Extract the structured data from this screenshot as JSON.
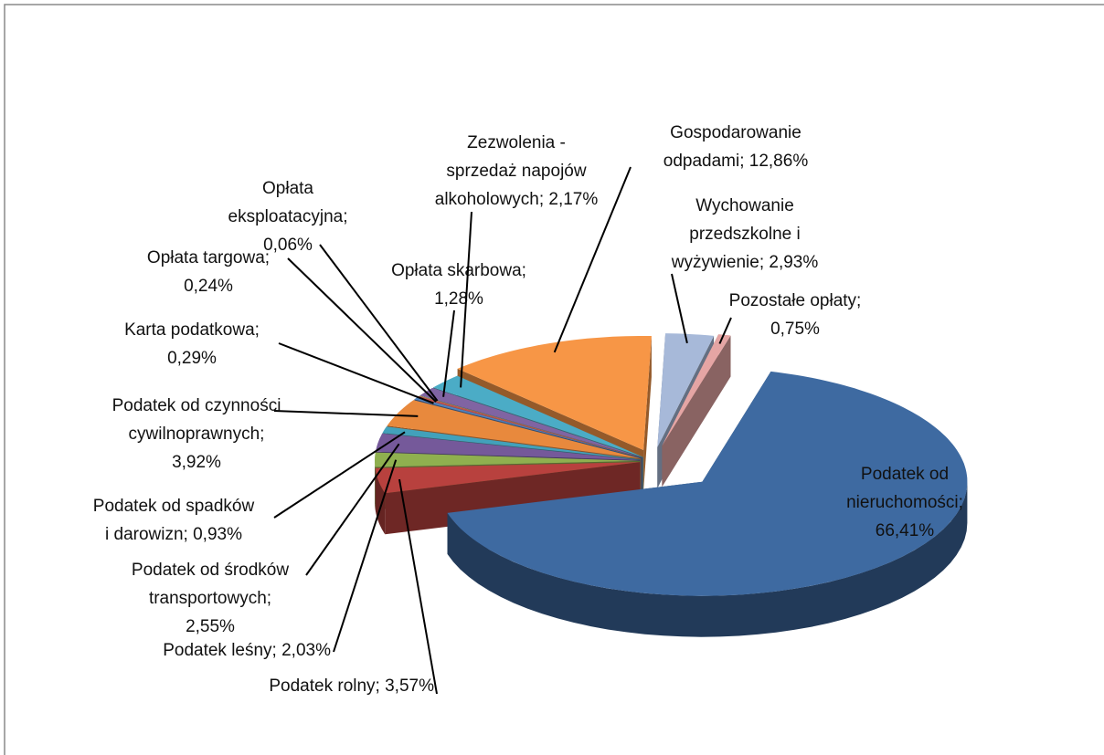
{
  "chart_data": {
    "type": "pie3d",
    "labels": [
      [
        "Podatek od",
        "nieruchomości;",
        "66,41%"
      ],
      [
        "Podatek rolny; 3,57%"
      ],
      [
        "Podatek leśny; 2,03%"
      ],
      [
        "Podatek od środków",
        "transportowych;",
        "2,55%"
      ],
      [
        "Podatek od spadków",
        "i darowizn; 0,93%"
      ],
      [
        "Podatek od czynności",
        "cywilnoprawnych;",
        "3,92%"
      ],
      [
        "Karta podatkowa;",
        "0,29%"
      ],
      [
        "Opłata targowa;",
        "0,24%"
      ],
      [
        "Opłata",
        "eksploatacyjna;",
        "0,06%"
      ],
      [
        "Opłata skarbowa;",
        "1,28%"
      ],
      [
        "Zezwolenia -",
        "sprzedaż napojów",
        "alkoholowych; 2,17%"
      ],
      [
        "Gospodarowanie",
        "odpadami; 12,86%"
      ],
      [
        "Wychowanie",
        "przedszkolne i",
        "wyżywienie; 2,93%"
      ],
      [
        "Pozostałe opłaty;",
        "0,75%"
      ]
    ],
    "values": [
      66.41,
      3.57,
      2.03,
      2.55,
      0.93,
      3.92,
      0.29,
      0.24,
      0.06,
      1.28,
      2.17,
      12.86,
      2.93,
      0.75
    ],
    "colors": [
      "#3e6aa1",
      "#b8413e",
      "#8fb04f",
      "#75599a",
      "#42a1bb",
      "#e8893d",
      "#4f81bd",
      "#c0504d",
      "#9bbb59",
      "#8064a2",
      "#4bacc6",
      "#f79646",
      "#a7b9d9",
      "#e5a5a4"
    ]
  }
}
